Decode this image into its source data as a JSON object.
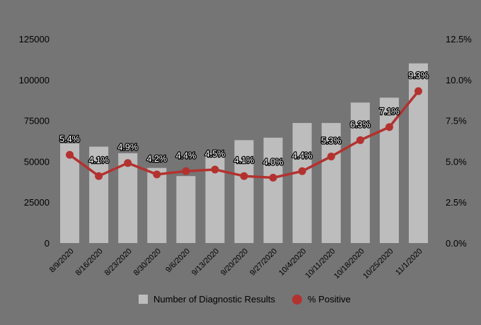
{
  "chart_data": {
    "type": "bar",
    "categories": [
      "8/9/2020",
      "8/16/2020",
      "8/23/2020",
      "8/30/2020",
      "9/6/2020",
      "9/13/2020",
      "9/20/2020",
      "9/27/2020",
      "10/4/2020",
      "10/11/2020",
      "10/18/2020",
      "10/25/2020",
      "11/1/2020"
    ],
    "series": [
      {
        "name": "Number of Diagnostic Results",
        "type": "bar",
        "axis": "left",
        "values": [
          61000,
          59000,
          55000,
          46000,
          41000,
          55000,
          63000,
          64500,
          73500,
          73500,
          86000,
          89000,
          110000
        ]
      },
      {
        "name": "% Positive",
        "type": "line",
        "axis": "right",
        "values": [
          5.4,
          4.1,
          4.9,
          4.2,
          4.4,
          4.5,
          4.1,
          4.0,
          4.4,
          5.3,
          6.3,
          7.1,
          9.3
        ],
        "labels": [
          "5.4%",
          "4.1%",
          "4.9%",
          "4.2%",
          "4.4%",
          "4.5%",
          "4.1%",
          "4.0%",
          "4.4%",
          "5.3%",
          "6.3%",
          "7.1%",
          "9.3%"
        ]
      }
    ],
    "y_left": {
      "ylim": [
        0,
        125000
      ],
      "ticks": [
        "0",
        "25000",
        "50000",
        "75000",
        "100000",
        "125000"
      ]
    },
    "y_right": {
      "ylim": [
        0,
        12.5
      ],
      "ticks": [
        "0.0%",
        "2.5%",
        "5.0%",
        "7.5%",
        "10.0%",
        "12.5%"
      ]
    },
    "grid": false,
    "legend": "bottom",
    "colors": {
      "background": "#757575",
      "bar": "#bdbdbd",
      "line": "#b3322f",
      "text": "#000000",
      "label_text": "#ffffff"
    }
  }
}
